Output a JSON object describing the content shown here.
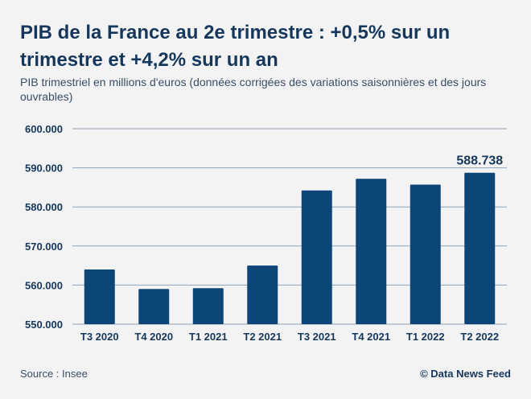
{
  "header": {
    "title": "PIB de la France au 2e trimestre : +0,5% sur un trimestre et +4,2% sur un an",
    "subtitle": "PIB trimestriel en millions d'euros (données corrigées des variations saisonnières et des jours ouvrables)"
  },
  "footer": {
    "source": "Source : Insee",
    "credit": "© Data News Feed"
  },
  "colors": {
    "bar": "#0c4678",
    "grid": "#8fa3ba",
    "text": "#16375c",
    "background": "#f3f3f3"
  },
  "chart_data": {
    "type": "bar",
    "categories": [
      "T3 2020",
      "T4 2020",
      "T1 2021",
      "T2 2021",
      "T3 2021",
      "T4 2021",
      "T1 2022",
      "T2 2022"
    ],
    "values": [
      564.0,
      559.0,
      559.2,
      565.0,
      584.2,
      587.2,
      585.7,
      588.738
    ],
    "yticks": [
      550,
      560,
      570,
      580,
      590,
      600
    ],
    "ytick_labels": [
      "550.000",
      "560.000",
      "570.000",
      "580.000",
      "590.000",
      "600.000"
    ],
    "ylim": [
      550,
      600
    ],
    "grid": true,
    "annotation": {
      "category": "T2 2022",
      "label": "588.738"
    }
  }
}
